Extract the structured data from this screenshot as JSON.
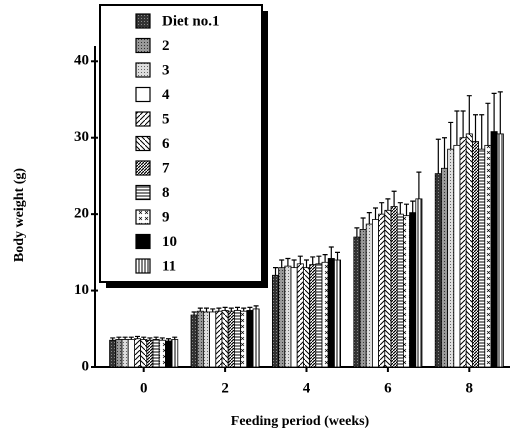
{
  "chart_data": {
    "type": "bar",
    "x_label": "Feeding   period (weeks)",
    "y_label": "Body weight (g)",
    "categories": [
      "0",
      "2",
      "4",
      "6",
      "8"
    ],
    "ylim": [
      0,
      42
    ],
    "yticks": [
      0,
      10,
      20,
      30,
      40
    ],
    "series": [
      {
        "name": "Diet no.1",
        "pattern": "solid",
        "values": [
          3.5,
          6.8,
          12.0,
          17.0,
          25.3
        ],
        "errors": [
          0.3,
          0.4,
          1.0,
          1.2,
          4.5
        ]
      },
      {
        "name": "2",
        "pattern": "dots",
        "values": [
          3.6,
          7.3,
          13.0,
          18.0,
          26.0
        ],
        "errors": [
          0.3,
          0.4,
          1.0,
          1.5,
          4.0
        ]
      },
      {
        "name": "3",
        "pattern": "light",
        "values": [
          3.6,
          7.2,
          13.2,
          18.7,
          28.5
        ],
        "errors": [
          0.3,
          0.5,
          1.0,
          1.5,
          3.5
        ]
      },
      {
        "name": "4",
        "pattern": "white",
        "values": [
          3.6,
          7.2,
          13.0,
          19.3,
          29.0
        ],
        "errors": [
          0.3,
          0.4,
          1.0,
          1.5,
          4.5
        ]
      },
      {
        "name": "5",
        "pattern": "diag",
        "values": [
          3.7,
          7.3,
          13.5,
          20.0,
          30.0
        ],
        "errors": [
          0.3,
          0.4,
          1.0,
          1.5,
          3.5
        ]
      },
      {
        "name": "6",
        "pattern": "diag2",
        "values": [
          3.6,
          7.4,
          13.0,
          20.5,
          30.5
        ],
        "errors": [
          0.3,
          0.4,
          1.0,
          1.5,
          5.0
        ]
      },
      {
        "name": "7",
        "pattern": "hatch",
        "values": [
          3.5,
          7.3,
          13.4,
          21.0,
          29.5
        ],
        "errors": [
          0.3,
          0.4,
          1.0,
          2.0,
          3.5
        ]
      },
      {
        "name": "8",
        "pattern": "hlines",
        "values": [
          3.6,
          7.4,
          13.5,
          20.0,
          28.5
        ],
        "errors": [
          0.3,
          0.4,
          1.0,
          1.5,
          4.5
        ]
      },
      {
        "name": "9",
        "pattern": "check",
        "values": [
          3.5,
          7.3,
          13.7,
          19.8,
          29.0
        ],
        "errors": [
          0.3,
          0.4,
          1.0,
          1.5,
          5.5
        ]
      },
      {
        "name": "10",
        "pattern": "black",
        "values": [
          3.4,
          7.4,
          14.2,
          20.2,
          30.8
        ],
        "errors": [
          0.3,
          0.4,
          1.5,
          1.5,
          5.0
        ]
      },
      {
        "name": "11",
        "pattern": "vlines",
        "values": [
          3.6,
          7.6,
          14.0,
          22.0,
          30.5
        ],
        "errors": [
          0.3,
          0.4,
          1.0,
          3.5,
          5.5
        ]
      }
    ]
  }
}
